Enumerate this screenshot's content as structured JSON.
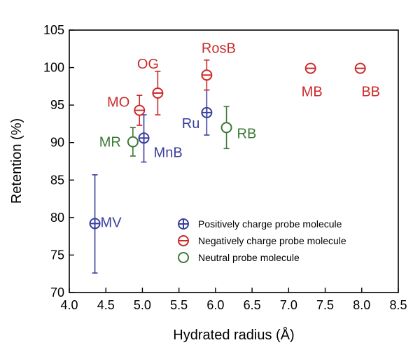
{
  "chart_data": {
    "type": "scatter",
    "title": "",
    "xlabel": "Hydrated radius (Å)",
    "ylabel": "Retention (%)",
    "xlim": [
      4.0,
      8.5
    ],
    "ylim": [
      70,
      105
    ],
    "xticks": [
      "4.0",
      "4.5",
      "5.0",
      "5.5",
      "6.0",
      "6.5",
      "7.0",
      "7.5",
      "8.0",
      "8.5"
    ],
    "yticks": [
      "70",
      "75",
      "80",
      "85",
      "90",
      "95",
      "100",
      "105"
    ],
    "grid": false,
    "legend_position": "bottom-right",
    "series": [
      {
        "name": "Positively charge probe molecule",
        "color": "#3a3f9c",
        "marker": "circle-plus",
        "points": [
          {
            "label": "MV",
            "x": 4.35,
            "y": 79.2,
            "err_low": 72.6,
            "err_high": 85.7
          },
          {
            "label": "MnB",
            "x": 5.02,
            "y": 90.6,
            "err_low": 87.4,
            "err_high": 93.7
          },
          {
            "label": "Ru",
            "x": 5.88,
            "y": 94.0,
            "err_low": 91.0,
            "err_high": 97.0
          }
        ]
      },
      {
        "name": "Negatively charge probe molecule",
        "color": "#cc2a2a",
        "marker": "circle-minus",
        "points": [
          {
            "label": "MO",
            "x": 4.96,
            "y": 94.3,
            "err_low": 92.3,
            "err_high": 96.3
          },
          {
            "label": "OG",
            "x": 5.21,
            "y": 96.6,
            "err_low": 93.7,
            "err_high": 99.5
          },
          {
            "label": "RosB",
            "x": 5.88,
            "y": 99.0,
            "err_low": 97.0,
            "err_high": 101.0
          },
          {
            "label": "MB",
            "x": 7.3,
            "y": 99.9,
            "err_low": 99.9,
            "err_high": 99.9
          },
          {
            "label": "BB",
            "x": 7.98,
            "y": 99.9,
            "err_low": 99.9,
            "err_high": 99.9
          }
        ]
      },
      {
        "name": "Neutral probe molecule",
        "color": "#3b7a35",
        "marker": "circle",
        "points": [
          {
            "label": "MR",
            "x": 4.87,
            "y": 90.1,
            "err_low": 88.2,
            "err_high": 92.0
          },
          {
            "label": "RB",
            "x": 6.15,
            "y": 92.0,
            "err_low": 89.2,
            "err_high": 94.8
          }
        ]
      }
    ]
  }
}
